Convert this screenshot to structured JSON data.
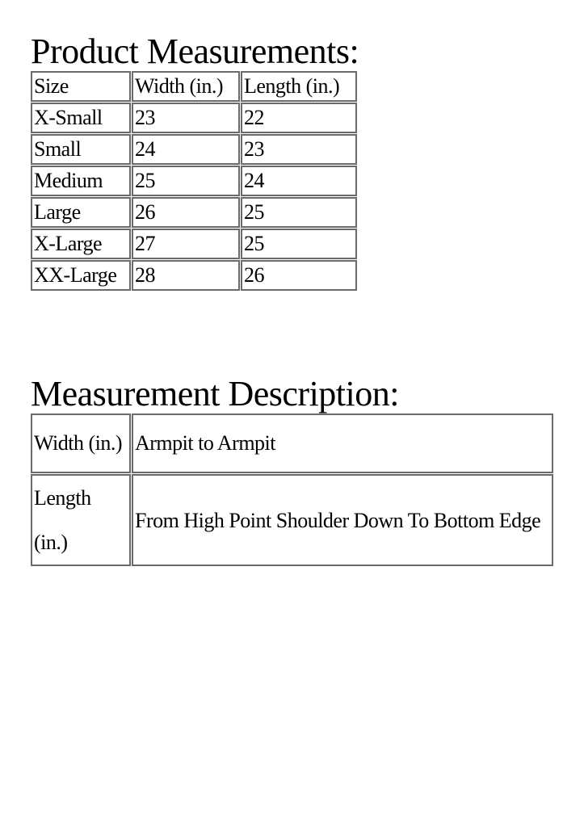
{
  "product_measurements": {
    "title": "Product Measurements:",
    "headers": [
      "Size",
      "Width (in.)",
      "Length (in.)"
    ],
    "rows": [
      [
        "X-Small",
        "23",
        "22"
      ],
      [
        "Small",
        "24",
        "23"
      ],
      [
        "Medium",
        "25",
        "24"
      ],
      [
        "Large",
        "26",
        "25"
      ],
      [
        "X-Large",
        "27",
        "25"
      ],
      [
        "XX-Large",
        "28",
        "26"
      ]
    ]
  },
  "measurement_description": {
    "title": "Measurement Description:",
    "rows": [
      [
        "Width (in.)",
        "Armpit to Armpit"
      ],
      [
        "Length (in.)",
        "From High Point Shoulder Down To Bottom Edge"
      ]
    ]
  }
}
